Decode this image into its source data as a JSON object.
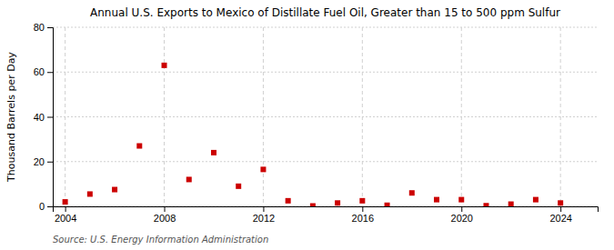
{
  "chart_data": {
    "type": "scatter",
    "title": "Annual U.S. Exports to Mexico of Distillate Fuel Oil, Greater than 15 to 500 ppm Sulfur",
    "ylabel": "Thousand Barrels per Day",
    "source": "Source: U.S. Energy Information Administration",
    "x": [
      2004,
      2005,
      2006,
      2007,
      2008,
      2009,
      2010,
      2011,
      2012,
      2013,
      2014,
      2015,
      2016,
      2017,
      2018,
      2019,
      2020,
      2021,
      2022,
      2023,
      2024
    ],
    "values": [
      2.0,
      5.5,
      7.5,
      27.0,
      63.0,
      12.0,
      24.0,
      9.0,
      16.5,
      2.5,
      0.2,
      1.5,
      2.5,
      0.5,
      6.0,
      3.0,
      3.0,
      0.3,
      1.0,
      3.0,
      1.5
    ],
    "color": "#cc0000",
    "marker": "square",
    "xlim": [
      2003.5,
      2025.5
    ],
    "xticks": [
      2004,
      2008,
      2012,
      2016,
      2020,
      2024
    ],
    "ylim": [
      0,
      80
    ],
    "yticks": [
      0,
      20,
      40,
      60,
      80
    ],
    "grid": true
  }
}
